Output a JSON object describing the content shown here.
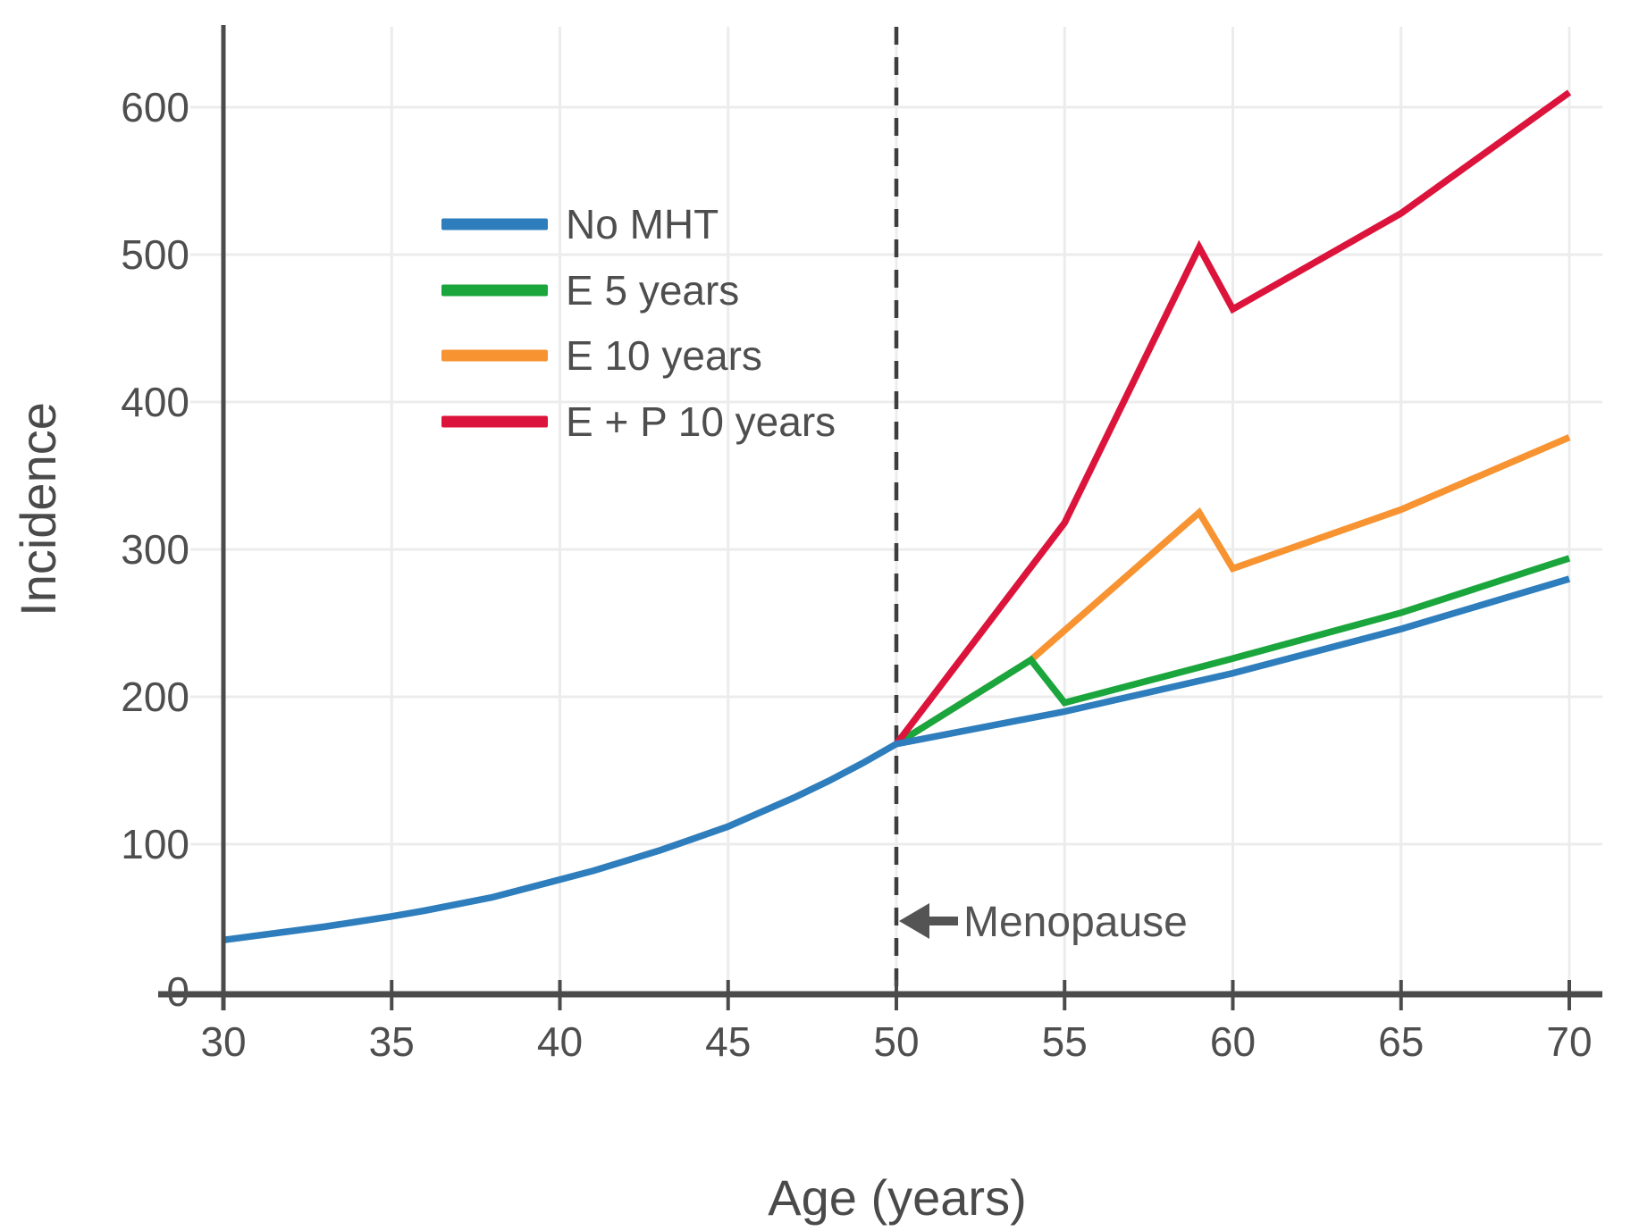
{
  "chart_data": {
    "type": "line",
    "title": "",
    "xlabel": "Age (years)",
    "ylabel": "Incidence",
    "x_ticks": [
      30,
      35,
      40,
      45,
      50,
      55,
      60,
      65,
      70
    ],
    "y_ticks": [
      0,
      100,
      200,
      300,
      400,
      500,
      600
    ],
    "xlim": [
      30,
      71
    ],
    "ylim": [
      0,
      654
    ],
    "grid": true,
    "legend_position": "upper-left-inside",
    "annotation": {
      "label": "Menopause",
      "arrow": "left",
      "x": 50
    },
    "dashed_line_x": 50,
    "series": [
      {
        "name": "No MHT",
        "color": "#2e7dbc",
        "points": [
          [
            30,
            35
          ],
          [
            31,
            38
          ],
          [
            32,
            41
          ],
          [
            33,
            44
          ],
          [
            34,
            47.5
          ],
          [
            35,
            51
          ],
          [
            36,
            55
          ],
          [
            37,
            59.5
          ],
          [
            38,
            64
          ],
          [
            39,
            70
          ],
          [
            40,
            76
          ],
          [
            41,
            82
          ],
          [
            42,
            89
          ],
          [
            43,
            96
          ],
          [
            44,
            104
          ],
          [
            45,
            112
          ],
          [
            46,
            122
          ],
          [
            47,
            132
          ],
          [
            48,
            143
          ],
          [
            49,
            155
          ],
          [
            50,
            168
          ],
          [
            55,
            190
          ],
          [
            60,
            216
          ],
          [
            65,
            246
          ],
          [
            70,
            280
          ]
        ]
      },
      {
        "name": "E 5 years",
        "color": "#1aa63c",
        "points": [
          [
            50,
            168
          ],
          [
            54,
            225
          ],
          [
            55,
            196
          ],
          [
            60,
            226
          ],
          [
            65,
            257
          ],
          [
            70,
            294
          ]
        ]
      },
      {
        "name": "E 10 years",
        "color": "#f79331",
        "points": [
          [
            50,
            168
          ],
          [
            54,
            225
          ],
          [
            59,
            325
          ],
          [
            60,
            287
          ],
          [
            65,
            327
          ],
          [
            70,
            376
          ]
        ]
      },
      {
        "name": "E + P 10 years",
        "color": "#dc143c",
        "points": [
          [
            50,
            168
          ],
          [
            55,
            318
          ],
          [
            59,
            505
          ],
          [
            60,
            463
          ],
          [
            65,
            528
          ],
          [
            70,
            610
          ]
        ]
      }
    ],
    "colors": {
      "axis": "#4b4b4b",
      "grid": "#ececec",
      "tick_label": "#4e4e4e",
      "axis_title": "#4a4a4a",
      "annotation_text": "#545454",
      "dashed_line": "#3e3e3e"
    }
  }
}
